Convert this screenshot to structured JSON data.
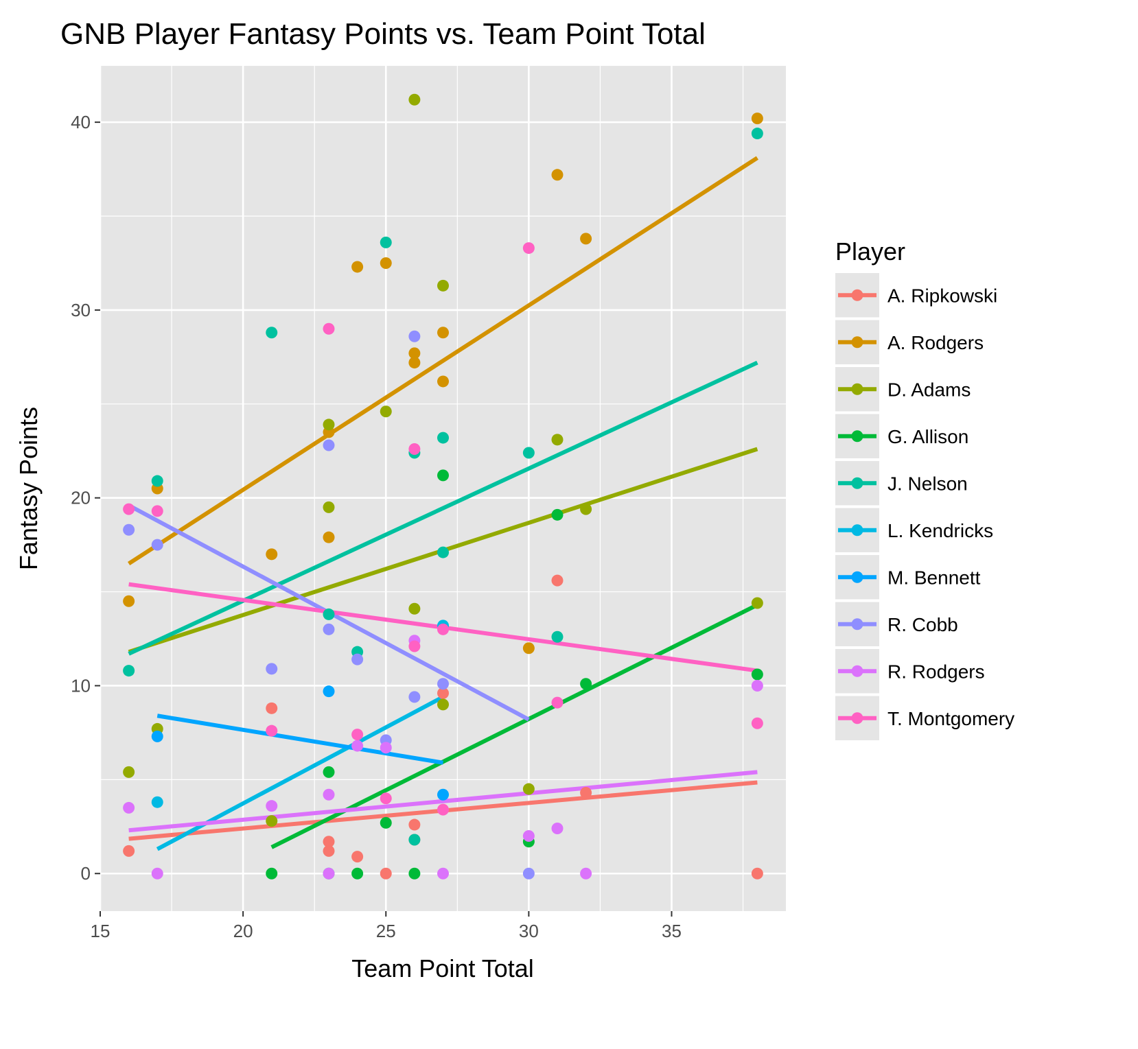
{
  "chart_data": {
    "type": "scatter",
    "title": "GNB Player Fantasy Points vs. Team Point Total",
    "xlabel": "Team Point Total",
    "ylabel": "Fantasy Points",
    "xlim": [
      15,
      39
    ],
    "ylim": [
      -2,
      43
    ],
    "x_ticks": [
      15,
      20,
      25,
      30,
      35
    ],
    "y_ticks": [
      0,
      10,
      20,
      30,
      40
    ],
    "grid": true,
    "legend_title": "Player",
    "legend_position": "right",
    "series": [
      {
        "name": "A. Ripkowski",
        "color": "#F8766D",
        "points": [
          [
            16,
            1.2
          ],
          [
            21,
            8.8
          ],
          [
            23,
            1.7
          ],
          [
            23,
            1.2
          ],
          [
            24,
            0.9
          ],
          [
            25,
            0
          ],
          [
            26,
            2.6
          ],
          [
            26,
            1.8
          ],
          [
            27,
            9.6
          ],
          [
            31,
            15.6
          ],
          [
            32,
            4.3
          ],
          [
            38,
            0
          ]
        ],
        "trend": [
          [
            16,
            1.85
          ],
          [
            38,
            4.85
          ]
        ]
      },
      {
        "name": "A. Rodgers",
        "color": "#D39200",
        "points": [
          [
            16,
            14.5
          ],
          [
            17,
            20.5
          ],
          [
            21,
            17.0
          ],
          [
            23,
            23.5
          ],
          [
            23,
            17.9
          ],
          [
            24,
            32.3
          ],
          [
            25,
            32.5
          ],
          [
            26,
            27.2
          ],
          [
            26,
            27.7
          ],
          [
            27,
            28.8
          ],
          [
            27,
            26.2
          ],
          [
            30,
            12.0
          ],
          [
            31,
            37.2
          ],
          [
            32,
            33.8
          ],
          [
            38,
            40.2
          ]
        ],
        "trend": [
          [
            16,
            16.5
          ],
          [
            38,
            38.1
          ]
        ]
      },
      {
        "name": "D. Adams",
        "color": "#93AA00",
        "points": [
          [
            16,
            5.4
          ],
          [
            17,
            7.7
          ],
          [
            21,
            2.8
          ],
          [
            23,
            23.9
          ],
          [
            23,
            19.5
          ],
          [
            25,
            24.6
          ],
          [
            26,
            41.2
          ],
          [
            26,
            14.1
          ],
          [
            27,
            31.3
          ],
          [
            27,
            9.0
          ],
          [
            30,
            4.5
          ],
          [
            31,
            23.1
          ],
          [
            32,
            19.4
          ],
          [
            38,
            14.4
          ]
        ],
        "trend": [
          [
            16,
            11.8
          ],
          [
            38,
            22.6
          ]
        ]
      },
      {
        "name": "G. Allison",
        "color": "#00BA38",
        "points": [
          [
            21,
            0
          ],
          [
            23,
            5.4
          ],
          [
            24,
            0
          ],
          [
            25,
            2.7
          ],
          [
            26,
            0
          ],
          [
            27,
            21.2
          ],
          [
            30,
            1.7
          ],
          [
            31,
            19.1
          ],
          [
            32,
            10.1
          ],
          [
            38,
            10.6
          ]
        ],
        "trend": [
          [
            21,
            1.4
          ],
          [
            38,
            14.3
          ]
        ]
      },
      {
        "name": "J. Nelson",
        "color": "#00C19F",
        "points": [
          [
            16,
            10.8
          ],
          [
            17,
            20.9
          ],
          [
            21,
            28.8
          ],
          [
            23,
            13.8
          ],
          [
            23,
            0
          ],
          [
            24,
            11.8
          ],
          [
            25,
            33.6
          ],
          [
            26,
            22.4
          ],
          [
            26,
            1.8
          ],
          [
            27,
            23.2
          ],
          [
            27,
            17.1
          ],
          [
            30,
            22.4
          ],
          [
            31,
            12.6
          ],
          [
            38,
            39.4
          ]
        ],
        "trend": [
          [
            16,
            11.7
          ],
          [
            38,
            27.2
          ]
        ]
      },
      {
        "name": "L. Kendricks",
        "color": "#00B9E3",
        "points": [
          [
            17,
            3.8
          ],
          [
            27,
            13.2
          ]
        ],
        "trend": [
          [
            17,
            1.3
          ],
          [
            27,
            9.4
          ]
        ]
      },
      {
        "name": "M. Bennett",
        "color": "#00A5FF",
        "points": [
          [
            17,
            7.3
          ],
          [
            23,
            9.7
          ],
          [
            27,
            4.2
          ]
        ],
        "trend": [
          [
            17,
            8.4
          ],
          [
            27,
            5.9
          ]
        ]
      },
      {
        "name": "R. Cobb",
        "color": "#8F8EFF",
        "points": [
          [
            16,
            18.3
          ],
          [
            17,
            17.5
          ],
          [
            21,
            10.9
          ],
          [
            23,
            22.8
          ],
          [
            23,
            13.0
          ],
          [
            24,
            11.4
          ],
          [
            25,
            7.1
          ],
          [
            26,
            28.6
          ],
          [
            26,
            9.4
          ],
          [
            27,
            10.1
          ],
          [
            30,
            0
          ]
        ],
        "trend": [
          [
            16,
            19.6
          ],
          [
            30,
            8.2
          ]
        ]
      },
      {
        "name": "R. Rodgers",
        "color": "#DB72FB",
        "points": [
          [
            16,
            3.5
          ],
          [
            17,
            0
          ],
          [
            21,
            3.6
          ],
          [
            23,
            4.2
          ],
          [
            23,
            0
          ],
          [
            24,
            6.8
          ],
          [
            25,
            6.7
          ],
          [
            26,
            12.4
          ],
          [
            27,
            0
          ],
          [
            30,
            2.0
          ],
          [
            31,
            2.4
          ],
          [
            32,
            0
          ],
          [
            38,
            10.0
          ]
        ],
        "trend": [
          [
            16,
            2.3
          ],
          [
            38,
            5.4
          ]
        ]
      },
      {
        "name": "T. Montgomery",
        "color": "#FF61C3",
        "points": [
          [
            16,
            19.4
          ],
          [
            17,
            19.3
          ],
          [
            21,
            7.6
          ],
          [
            23,
            29.0
          ],
          [
            24,
            7.4
          ],
          [
            25,
            4.0
          ],
          [
            26,
            22.6
          ],
          [
            26,
            12.1
          ],
          [
            27,
            13.0
          ],
          [
            27,
            3.4
          ],
          [
            30,
            33.3
          ],
          [
            31,
            9.1
          ],
          [
            38,
            8.0
          ]
        ],
        "trend": [
          [
            16,
            15.4
          ],
          [
            38,
            10.8
          ]
        ]
      }
    ]
  },
  "colors": {
    "panel_background": "#E5E5E5",
    "grid_line": "#FFFFFF",
    "tick_text": "#4D4D4D"
  }
}
